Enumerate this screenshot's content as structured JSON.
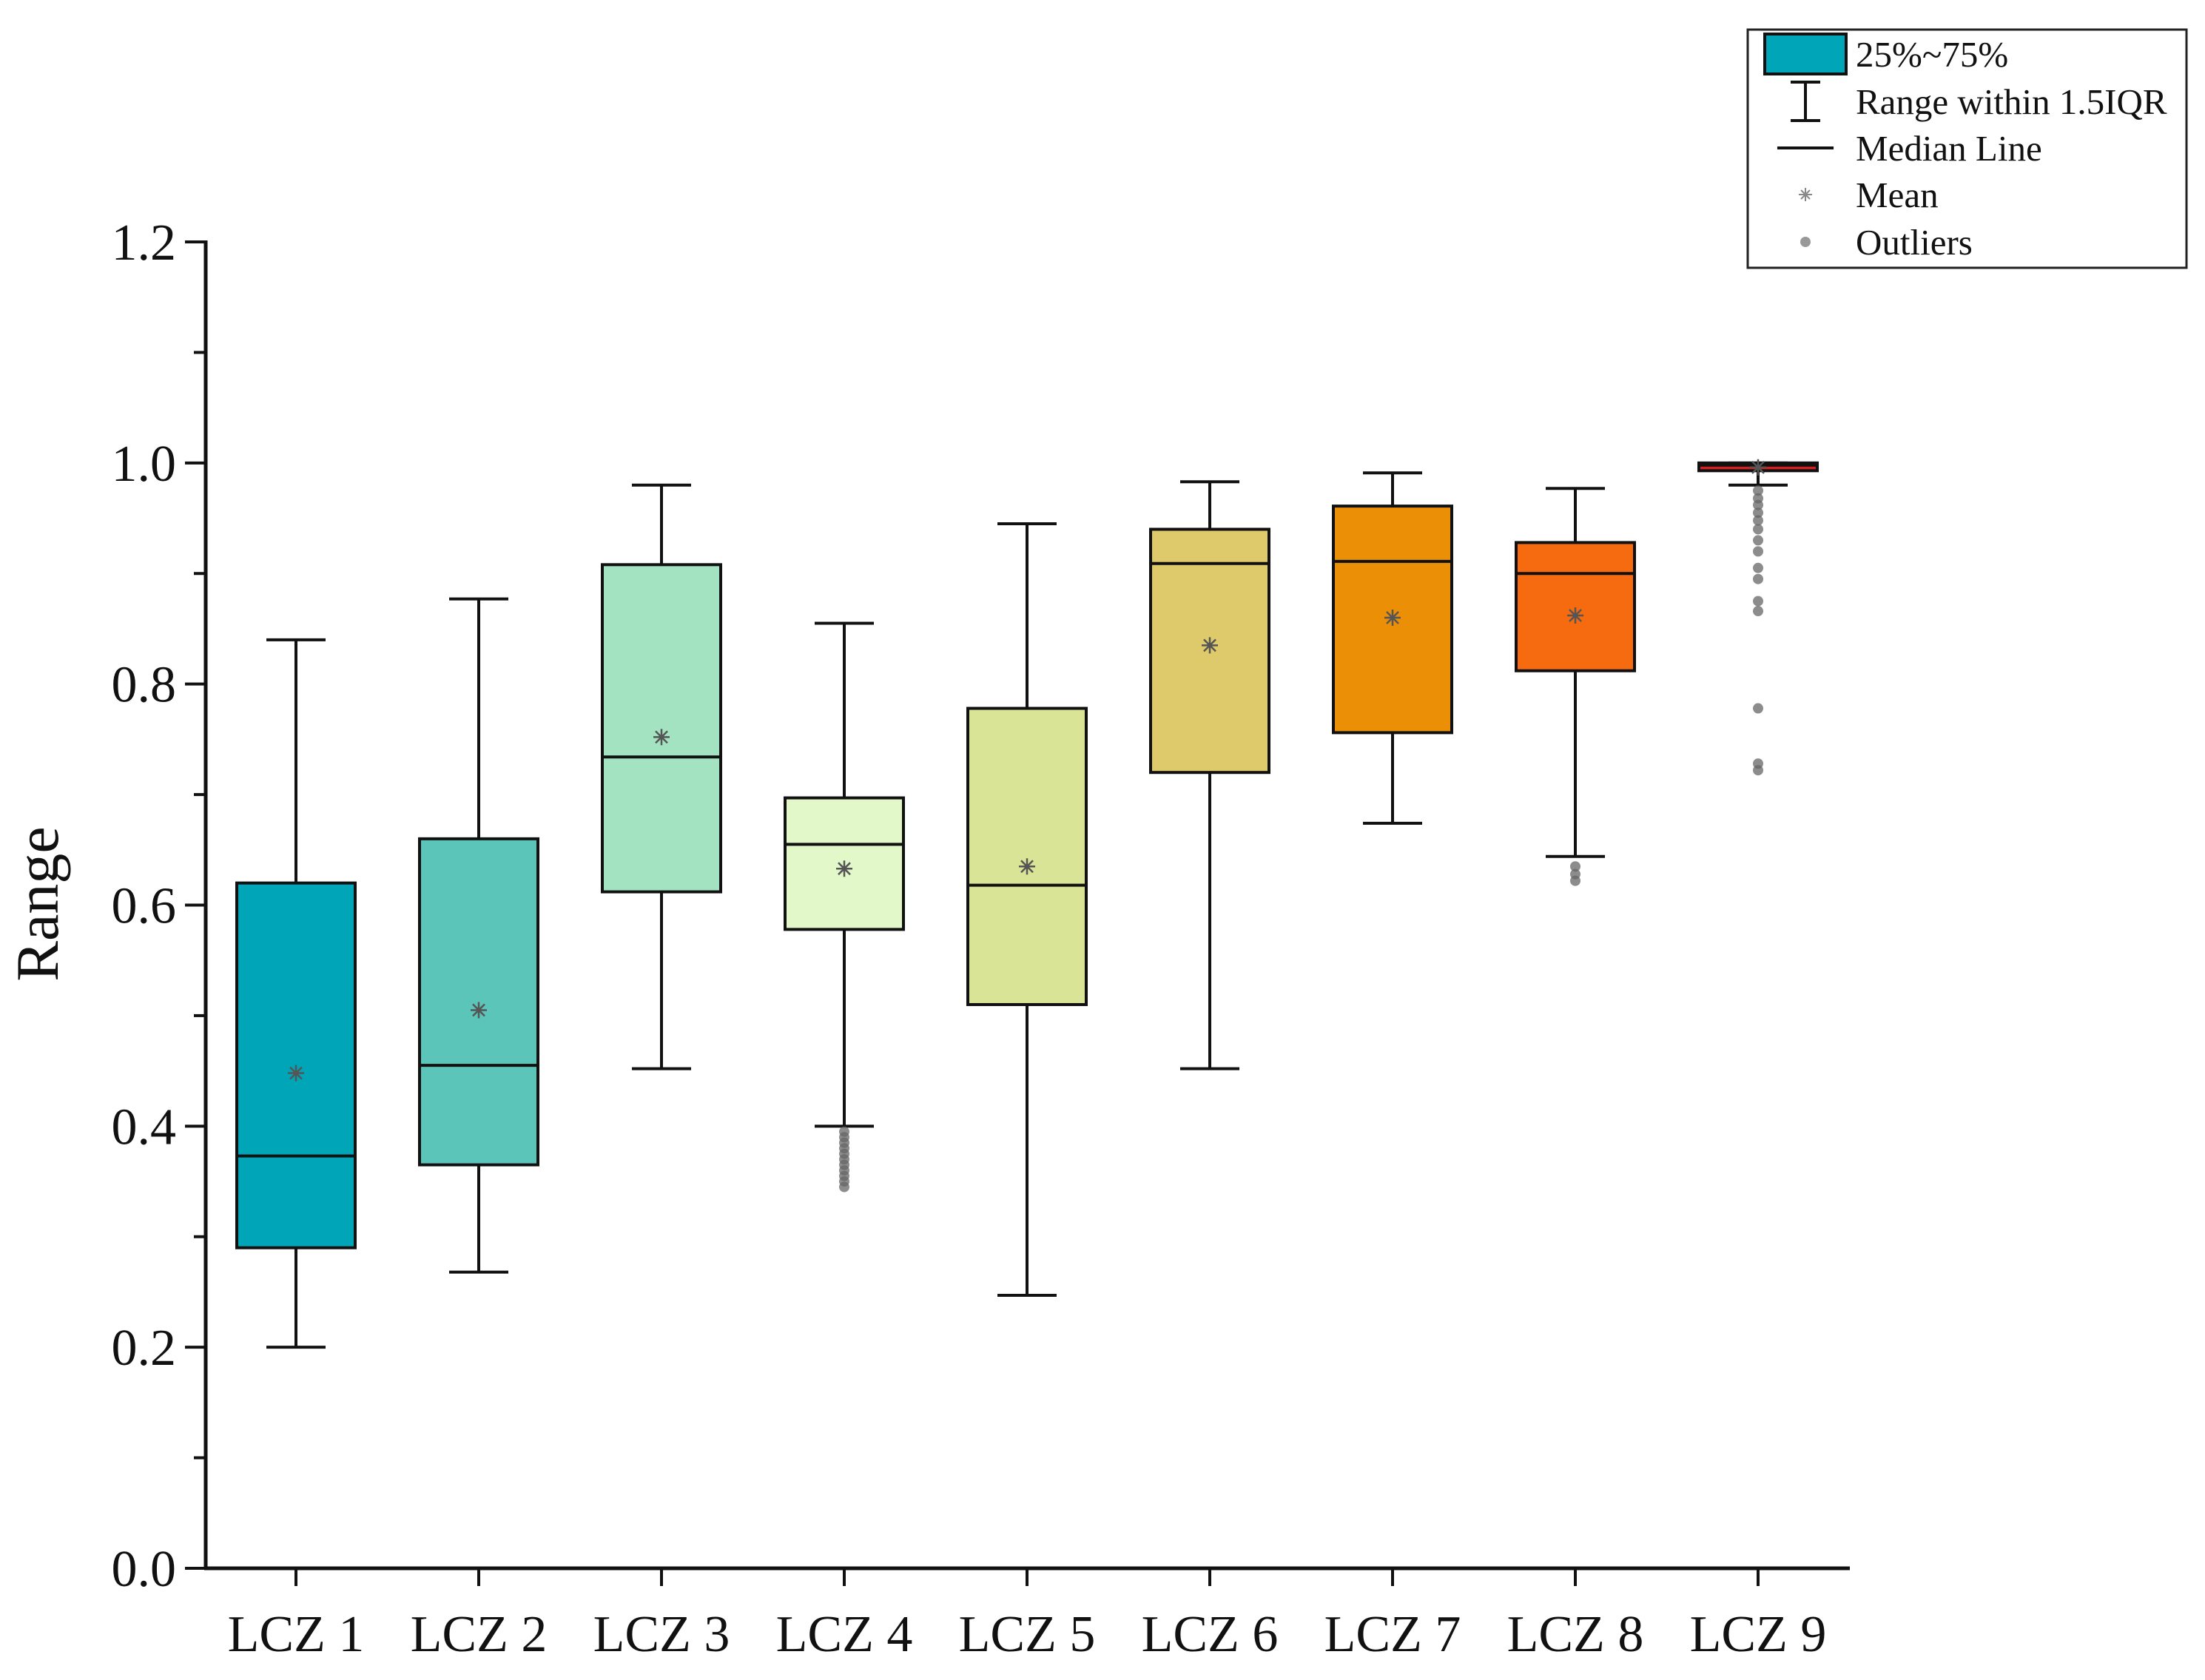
{
  "chart_data": {
    "type": "box",
    "title": "",
    "xlabel": "",
    "ylabel": "Range",
    "ylim": [
      0,
      1.2
    ],
    "yticks": [
      0.0,
      0.2,
      0.4,
      0.6,
      0.8,
      1.0,
      1.2
    ],
    "ytick_labels": [
      "0.0",
      "0.2",
      "0.4",
      "0.6",
      "0.8",
      "1.0",
      "1.2"
    ],
    "y_minor_step": 0.1,
    "categories": [
      "LCZ 1",
      "LCZ 2",
      "LCZ 3",
      "LCZ 4",
      "LCZ 5",
      "LCZ 6",
      "LCZ 7",
      "LCZ 8",
      "LCZ 9"
    ],
    "series": [
      {
        "name": "LCZ 1",
        "color": "#00a5b8",
        "whisker_low": 0.2,
        "q1": 0.29,
        "median": 0.373,
        "q3": 0.62,
        "whisker_high": 0.84,
        "mean": 0.448,
        "outliers": []
      },
      {
        "name": "LCZ 2",
        "color": "#5cc5ba",
        "whisker_low": 0.268,
        "q1": 0.365,
        "median": 0.455,
        "q3": 0.66,
        "whisker_high": 0.877,
        "mean": 0.505,
        "outliers": []
      },
      {
        "name": "LCZ 3",
        "color": "#a3e3c1",
        "whisker_low": 0.452,
        "q1": 0.612,
        "median": 0.734,
        "q3": 0.908,
        "whisker_high": 0.98,
        "mean": 0.752,
        "outliers": []
      },
      {
        "name": "LCZ 4",
        "color": "#e3f8c9",
        "whisker_low": 0.4,
        "q1": 0.578,
        "median": 0.655,
        "q3": 0.697,
        "whisker_high": 0.855,
        "mean": 0.633,
        "outliers": [
          0.395,
          0.39,
          0.385,
          0.38,
          0.375,
          0.37,
          0.365,
          0.36,
          0.355,
          0.35,
          0.345
        ]
      },
      {
        "name": "LCZ 5",
        "color": "#d9e497",
        "whisker_low": 0.247,
        "q1": 0.51,
        "median": 0.618,
        "q3": 0.778,
        "whisker_high": 0.945,
        "mean": 0.635,
        "outliers": []
      },
      {
        "name": "LCZ 6",
        "color": "#dec96b",
        "whisker_low": 0.452,
        "q1": 0.72,
        "median": 0.909,
        "q3": 0.94,
        "whisker_high": 0.983,
        "mean": 0.835,
        "outliers": []
      },
      {
        "name": "LCZ 7",
        "color": "#ea8f06",
        "whisker_low": 0.674,
        "q1": 0.756,
        "median": 0.911,
        "q3": 0.961,
        "whisker_high": 0.991,
        "mean": 0.86,
        "outliers": []
      },
      {
        "name": "LCZ 8",
        "color": "#f66a10",
        "whisker_low": 0.644,
        "q1": 0.812,
        "median": 0.9,
        "q3": 0.928,
        "whisker_high": 0.977,
        "mean": 0.862,
        "outliers": [
          0.635,
          0.628,
          0.622
        ]
      },
      {
        "name": "LCZ 9",
        "color": "#d61f1f",
        "whisker_low": 0.98,
        "q1": 0.993,
        "median": 0.998,
        "q3": 1.0,
        "whisker_high": 1.0,
        "mean": 0.996,
        "outliers": [
          0.975,
          0.968,
          0.962,
          0.955,
          0.948,
          0.94,
          0.93,
          0.92,
          0.905,
          0.895,
          0.875,
          0.866,
          0.778,
          0.728,
          0.722
        ]
      }
    ],
    "legend": {
      "position": "top-right",
      "items": [
        {
          "label": "25%~75%",
          "kind": "box",
          "color": "#00a5b8"
        },
        {
          "label": "Range within 1.5IQR",
          "kind": "whisker"
        },
        {
          "label": "Median Line",
          "kind": "line"
        },
        {
          "label": "Mean",
          "kind": "mean"
        },
        {
          "label": "Outliers",
          "kind": "outlier"
        }
      ]
    }
  }
}
